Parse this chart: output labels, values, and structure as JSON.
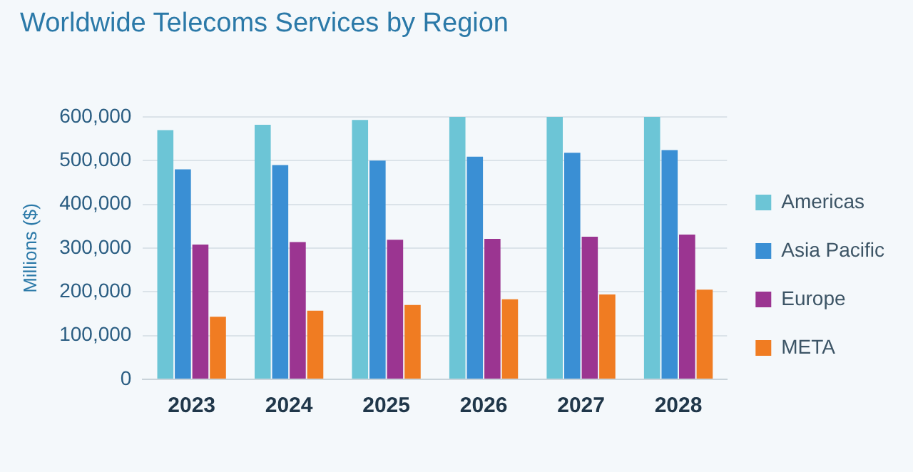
{
  "chart_data": {
    "type": "bar",
    "title": "Worldwide Telecoms Services by Region",
    "ylabel": "Millions ($)",
    "categories": [
      "2023",
      "2024",
      "2025",
      "2026",
      "2027",
      "2028"
    ],
    "series": [
      {
        "name": "Americas",
        "color": "#6cc5d6",
        "values": [
          570000,
          582000,
          593000,
          600000,
          600000,
          600000
        ]
      },
      {
        "name": "Asia Pacific",
        "color": "#3a8fd4",
        "values": [
          480000,
          490000,
          500000,
          509000,
          518000,
          524000
        ]
      },
      {
        "name": "Europe",
        "color": "#9b3591",
        "values": [
          308000,
          314000,
          319000,
          321000,
          326000,
          331000
        ]
      },
      {
        "name": "META",
        "color": "#f07c22",
        "values": [
          143000,
          157000,
          170000,
          183000,
          194000,
          205000
        ]
      }
    ],
    "ylim": [
      0,
      600000
    ],
    "yticks": [
      0,
      {
        "value": 100000,
        "label": "100,000"
      },
      {
        "value": 200000,
        "label": "200,000"
      },
      {
        "value": 300000,
        "label": "300,000"
      },
      {
        "value": 400000,
        "label": "400,000"
      },
      {
        "value": 500000,
        "label": "500,000"
      },
      {
        "value": 600000,
        "label": "600,000"
      }
    ],
    "grid": "y",
    "legend": "right"
  }
}
